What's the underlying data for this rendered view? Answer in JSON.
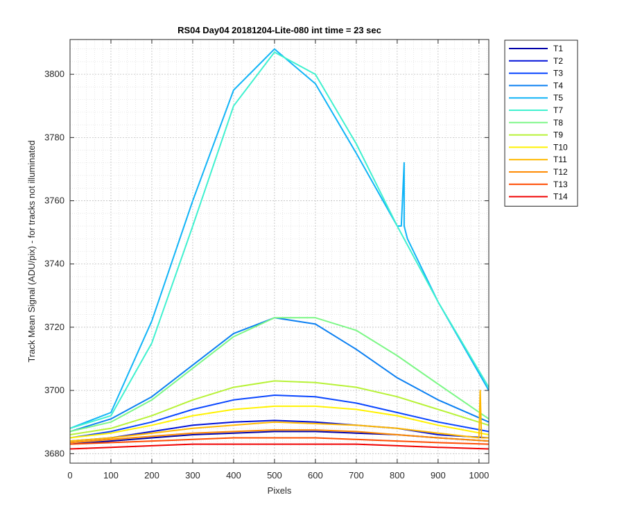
{
  "chart_data": {
    "type": "line",
    "title": "RS04 Day04 20181204-Lite-080 int time = 23 sec",
    "xlabel": "Pixels",
    "ylabel": "Track Mean Signal (ADU/pix) - for tracks not illuminated",
    "xlim": [
      0,
      1024
    ],
    "ylim": [
      3677,
      3811
    ],
    "xticks": [
      "0",
      "100",
      "200",
      "300",
      "400",
      "500",
      "600",
      "700",
      "800",
      "900",
      "1000"
    ],
    "yticks": [
      "3680",
      "3700",
      "3720",
      "3740",
      "3760",
      "3780",
      "3800"
    ],
    "grid": true,
    "minor_grid": true,
    "legend_position": "outside-top-right",
    "series": [
      {
        "name": "T1",
        "color": "#0000a8",
        "x": [
          0,
          100,
          200,
          300,
          400,
          500,
          600,
          700,
          800,
          900,
          1024
        ],
        "y": [
          3683,
          3684,
          3685,
          3686,
          3686.5,
          3687,
          3687,
          3686.5,
          3686,
          3685,
          3684
        ]
      },
      {
        "name": "T2",
        "color": "#0011d9",
        "x": [
          0,
          100,
          200,
          300,
          400,
          500,
          600,
          700,
          800,
          900,
          1024
        ],
        "y": [
          3684,
          3685,
          3687,
          3689,
          3690,
          3690.5,
          3690,
          3689,
          3688,
          3686,
          3685
        ]
      },
      {
        "name": "T3",
        "color": "#0845ff",
        "x": [
          0,
          100,
          200,
          300,
          400,
          500,
          600,
          700,
          800,
          900,
          1024
        ],
        "y": [
          3685,
          3687,
          3690,
          3694,
          3697,
          3698.5,
          3698,
          3696,
          3693,
          3690,
          3687
        ]
      },
      {
        "name": "T4",
        "color": "#0a7ff2",
        "x": [
          0,
          100,
          200,
          300,
          400,
          500,
          600,
          700,
          800,
          900,
          1024
        ],
        "y": [
          3687,
          3691,
          3698,
          3708,
          3718,
          3723,
          3721,
          3713,
          3704,
          3697,
          3690
        ]
      },
      {
        "name": "T5",
        "color": "#10b4f7",
        "x": [
          0,
          100,
          200,
          300,
          400,
          500,
          600,
          700,
          800,
          800,
          810,
          817,
          817,
          825,
          900,
          1024
        ],
        "y": [
          3688,
          3693,
          3722,
          3760,
          3795,
          3808,
          3797,
          3775,
          3752,
          3752,
          3752,
          3772,
          3752,
          3748,
          3728,
          3700
        ]
      },
      {
        "name": "T7",
        "color": "#3ff1cf",
        "x": [
          0,
          100,
          200,
          300,
          400,
          500,
          600,
          700,
          800,
          900,
          1024
        ],
        "y": [
          3688,
          3692,
          3715,
          3752,
          3790,
          3807,
          3800,
          3778,
          3752,
          3728,
          3701
        ]
      },
      {
        "name": "T8",
        "color": "#7cf786",
        "x": [
          0,
          100,
          200,
          300,
          400,
          500,
          600,
          700,
          800,
          900,
          1024
        ],
        "y": [
          3687,
          3690,
          3697,
          3707,
          3717,
          3723,
          3723,
          3719,
          3711,
          3702,
          3691
        ]
      },
      {
        "name": "T9",
        "color": "#b7f236",
        "x": [
          0,
          100,
          200,
          300,
          400,
          500,
          600,
          700,
          800,
          900,
          1024
        ],
        "y": [
          3686,
          3688,
          3692,
          3697,
          3701,
          3703,
          3702.5,
          3701,
          3698,
          3694,
          3689
        ]
      },
      {
        "name": "T10",
        "color": "#fff200",
        "x": [
          0,
          100,
          200,
          300,
          400,
          500,
          600,
          700,
          800,
          900,
          1024
        ],
        "y": [
          3685,
          3686.5,
          3689,
          3692,
          3694,
          3695,
          3695,
          3694,
          3692,
          3689,
          3686
        ]
      },
      {
        "name": "T11",
        "color": "#ffb800",
        "x": [
          0,
          100,
          200,
          300,
          400,
          500,
          600,
          700,
          800,
          900,
          1000,
          1000,
          1003,
          1006,
          1024
        ],
        "y": [
          3684,
          3685,
          3686.5,
          3688,
          3689,
          3690,
          3689.5,
          3689,
          3688,
          3686.5,
          3685,
          3685,
          3700,
          3685,
          3685
        ]
      },
      {
        "name": "T12",
        "color": "#ff8a00",
        "x": [
          0,
          100,
          200,
          300,
          400,
          500,
          600,
          700,
          800,
          900,
          1024
        ],
        "y": [
          3683.5,
          3684.5,
          3685.5,
          3686.5,
          3687,
          3687.5,
          3687.5,
          3687,
          3686,
          3685,
          3684
        ]
      },
      {
        "name": "T13",
        "color": "#ff4a00",
        "x": [
          0,
          100,
          200,
          300,
          400,
          500,
          600,
          700,
          800,
          900,
          1024
        ],
        "y": [
          3683,
          3683.5,
          3684,
          3684.5,
          3685,
          3685,
          3685,
          3684.5,
          3684,
          3683.5,
          3683
        ]
      },
      {
        "name": "T14",
        "color": "#f00000",
        "x": [
          0,
          100,
          200,
          300,
          400,
          500,
          600,
          700,
          800,
          900,
          1024
        ],
        "y": [
          3681.5,
          3682,
          3682.5,
          3683,
          3683,
          3683,
          3683,
          3683,
          3682.5,
          3682,
          3681.5
        ]
      }
    ]
  }
}
